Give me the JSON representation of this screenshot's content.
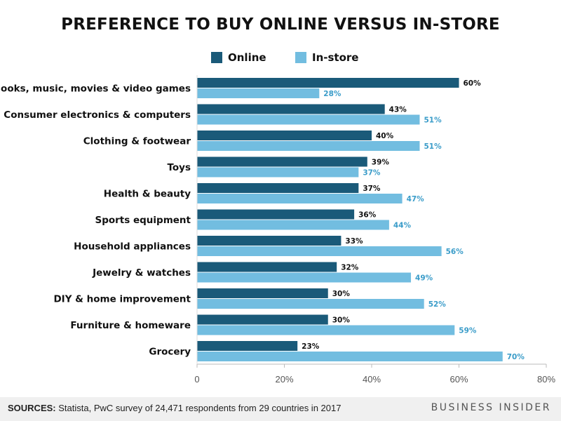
{
  "title": "PREFERENCE TO BUY ONLINE VERSUS IN-STORE",
  "legend": [
    {
      "label": "Online",
      "color": "#1a5a79"
    },
    {
      "label": "In-store",
      "color": "#72bde0"
    }
  ],
  "footer": {
    "source_label": "SOURCES:",
    "source_text": " Statista, PwC survey of 24,471 respondents from 29 countries in 2017",
    "brand": "BUSINESS INSIDER"
  },
  "chart_data": {
    "type": "bar",
    "orientation": "horizontal",
    "title": "PREFERENCE TO BUY ONLINE VERSUS IN-STORE",
    "categories": [
      "Books, music, movies & video games",
      "Consumer electronics & computers",
      "Clothing & footwear",
      "Toys",
      "Health & beauty",
      "Sports equipment",
      "Household appliances",
      "Jewelry & watches",
      "DIY & home improvement",
      "Furniture & homeware",
      "Grocery"
    ],
    "series": [
      {
        "name": "Online",
        "color": "#1a5a79",
        "values": [
          60,
          43,
          40,
          39,
          37,
          36,
          33,
          32,
          30,
          30,
          23
        ]
      },
      {
        "name": "In-store",
        "color": "#72bde0",
        "values": [
          28,
          51,
          51,
          37,
          47,
          44,
          56,
          49,
          52,
          59,
          70
        ]
      }
    ],
    "data_label_suffix": "%",
    "xlim": [
      0,
      80
    ],
    "xticks": [
      0,
      20,
      40,
      60,
      80
    ],
    "xtick_labels": [
      "0",
      "20%",
      "40%",
      "60%",
      "80%"
    ],
    "grid": false,
    "legend_position": "top-center"
  }
}
